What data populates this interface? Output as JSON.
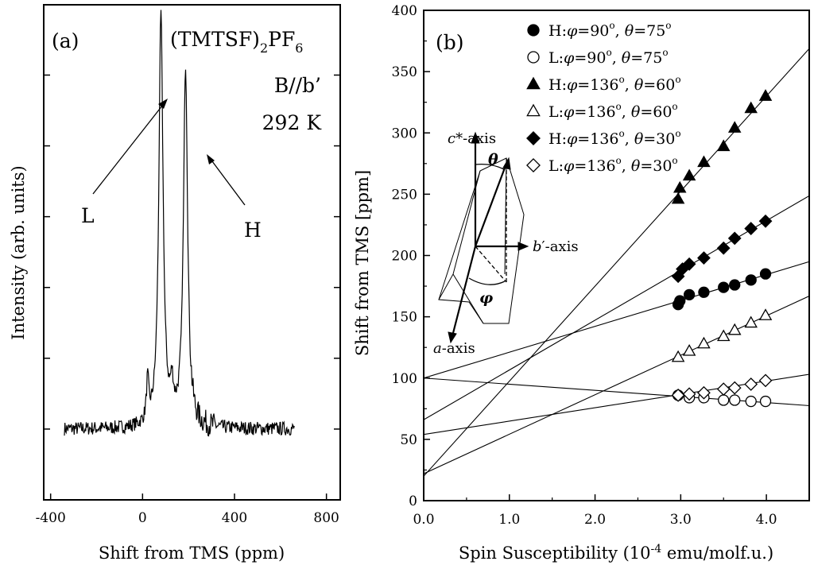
{
  "chart_data": [
    {
      "panel": "(a)",
      "type": "line",
      "title": "(TMTSF)2PF6",
      "title_parts": {
        "base": "(TMTSF)",
        "sub1": "2",
        "mid": "PF",
        "sub2": "6"
      },
      "field_label": "B//b’",
      "temperature_label": "292 K",
      "xlabel": "Shift from TMS (ppm)",
      "ylabel": "Intensity (arb. units)",
      "xlim": [
        -430,
        860
      ],
      "ylim": [
        0,
        1
      ],
      "x_ticks": [
        -400,
        0,
        400,
        800
      ],
      "x_tick_labels": [
        "-400",
        "0",
        "400",
        "800"
      ],
      "y_ticks_unlabeled": [
        0.0,
        0.143,
        0.286,
        0.429,
        0.572,
        0.715,
        0.858
      ],
      "annotations": [
        {
          "text": "L",
          "tip_x": 72,
          "tip_y": 0.748
        },
        {
          "text": "H",
          "tip_x": 185,
          "tip_y": 0.627
        }
      ],
      "spectrum": {
        "x_range": [
          -340,
          660
        ],
        "baseline": 0.143,
        "peaks": [
          {
            "center": 80,
            "height": 0.835,
            "width": 11
          },
          {
            "center": 187,
            "height": 0.725,
            "width": 11
          },
          {
            "center": 22,
            "height": 0.08,
            "width": 6
          },
          {
            "center": 128,
            "height": 0.06,
            "width": 8
          }
        ],
        "noise_amplitude": 0.014
      }
    },
    {
      "panel": "(b)",
      "type": "scatter",
      "xlabel": "Spin Susceptibility (10-4 emu/molf.u.)",
      "xlabel_parts": {
        "pre": "Spin Susceptibility (10",
        "sup": "-4",
        "post": " emu/molf.u.)"
      },
      "ylabel": "Shift from TMS [ppm]",
      "xlim": [
        0,
        4.5
      ],
      "ylim": [
        0,
        400
      ],
      "x_ticks": [
        0.0,
        1.0,
        2.0,
        3.0,
        4.0
      ],
      "x_tick_labels": [
        "0.0",
        "1.0",
        "2.0",
        "3.0",
        "4.0"
      ],
      "y_ticks": [
        0,
        50,
        100,
        150,
        200,
        250,
        300,
        350,
        400
      ],
      "y_tick_labels": [
        "0",
        "50",
        "100",
        "150",
        "200",
        "250",
        "300",
        "350",
        "400"
      ],
      "series": [
        {
          "name": "H:φ=90°, θ=75°",
          "prefix": "H:",
          "phi": "=90",
          "theta": "=75",
          "marker": "circle-filled",
          "x": [
            2.97,
            2.99,
            3.1,
            3.27,
            3.5,
            3.63,
            3.82,
            3.99
          ],
          "y": [
            160,
            163,
            168,
            170,
            174,
            176,
            180,
            185
          ],
          "fit": {
            "intercept": 100,
            "slope": 21.1
          }
        },
        {
          "name": "L:φ=90°, θ=75°",
          "prefix": "L:",
          "phi": "=90",
          "theta": "=75",
          "marker": "circle-open",
          "x": [
            2.97,
            3.1,
            3.27,
            3.5,
            3.63,
            3.82,
            3.99
          ],
          "y": [
            86,
            84,
            84,
            82,
            82,
            81,
            81
          ],
          "fit": {
            "intercept": 100,
            "slope": -5.0
          }
        },
        {
          "name": "H:φ=136°, θ=60°",
          "prefix": "H:",
          "phi": "=136",
          "theta": "=60",
          "marker": "triangle-filled",
          "x": [
            2.97,
            2.99,
            3.1,
            3.27,
            3.5,
            3.63,
            3.82,
            3.99
          ],
          "y": [
            246,
            255,
            265,
            276,
            289,
            304,
            320,
            330
          ],
          "fit": {
            "intercept": 20,
            "slope": 77.5
          }
        },
        {
          "name": "L:φ=136°, θ=60°",
          "prefix": "L:",
          "phi": "=136",
          "theta": "=60",
          "marker": "triangle-open",
          "x": [
            2.97,
            3.1,
            3.27,
            3.5,
            3.63,
            3.82,
            3.99
          ],
          "y": [
            117,
            122,
            128,
            134,
            139,
            145,
            151
          ],
          "fit": {
            "intercept": 22,
            "slope": 32.2
          }
        },
        {
          "name": "H:φ=136°, θ=30°",
          "prefix": "H:",
          "phi": "=136",
          "theta": "=30",
          "marker": "diamond-filled",
          "x": [
            2.97,
            3.02,
            3.1,
            3.27,
            3.5,
            3.63,
            3.82,
            3.99
          ],
          "y": [
            183,
            189,
            193,
            198,
            206,
            214,
            222,
            228
          ],
          "fit": {
            "intercept": 66,
            "slope": 40.6
          }
        },
        {
          "name": "L:φ=136°, θ=30°",
          "prefix": "L:",
          "phi": "=136",
          "theta": "=30",
          "marker": "diamond-open",
          "x": [
            2.97,
            3.1,
            3.27,
            3.5,
            3.63,
            3.82,
            3.99
          ],
          "y": [
            86,
            87,
            88,
            91,
            92,
            95,
            98
          ],
          "fit": {
            "intercept": 54,
            "slope": 10.9
          }
        }
      ],
      "inset": {
        "c_axis_label_pre": "c",
        "c_axis_label_post": "*-axis",
        "b_axis_label_pre": "b",
        "b_axis_label_post": "′-axis",
        "a_axis_label_pre": "a",
        "a_axis_label_post": "-axis",
        "theta_symbol": "θ",
        "phi_symbol": "φ"
      }
    }
  ],
  "symbols": {
    "phi": "φ",
    "theta": "θ",
    "degree": "o",
    "comma": ", "
  }
}
